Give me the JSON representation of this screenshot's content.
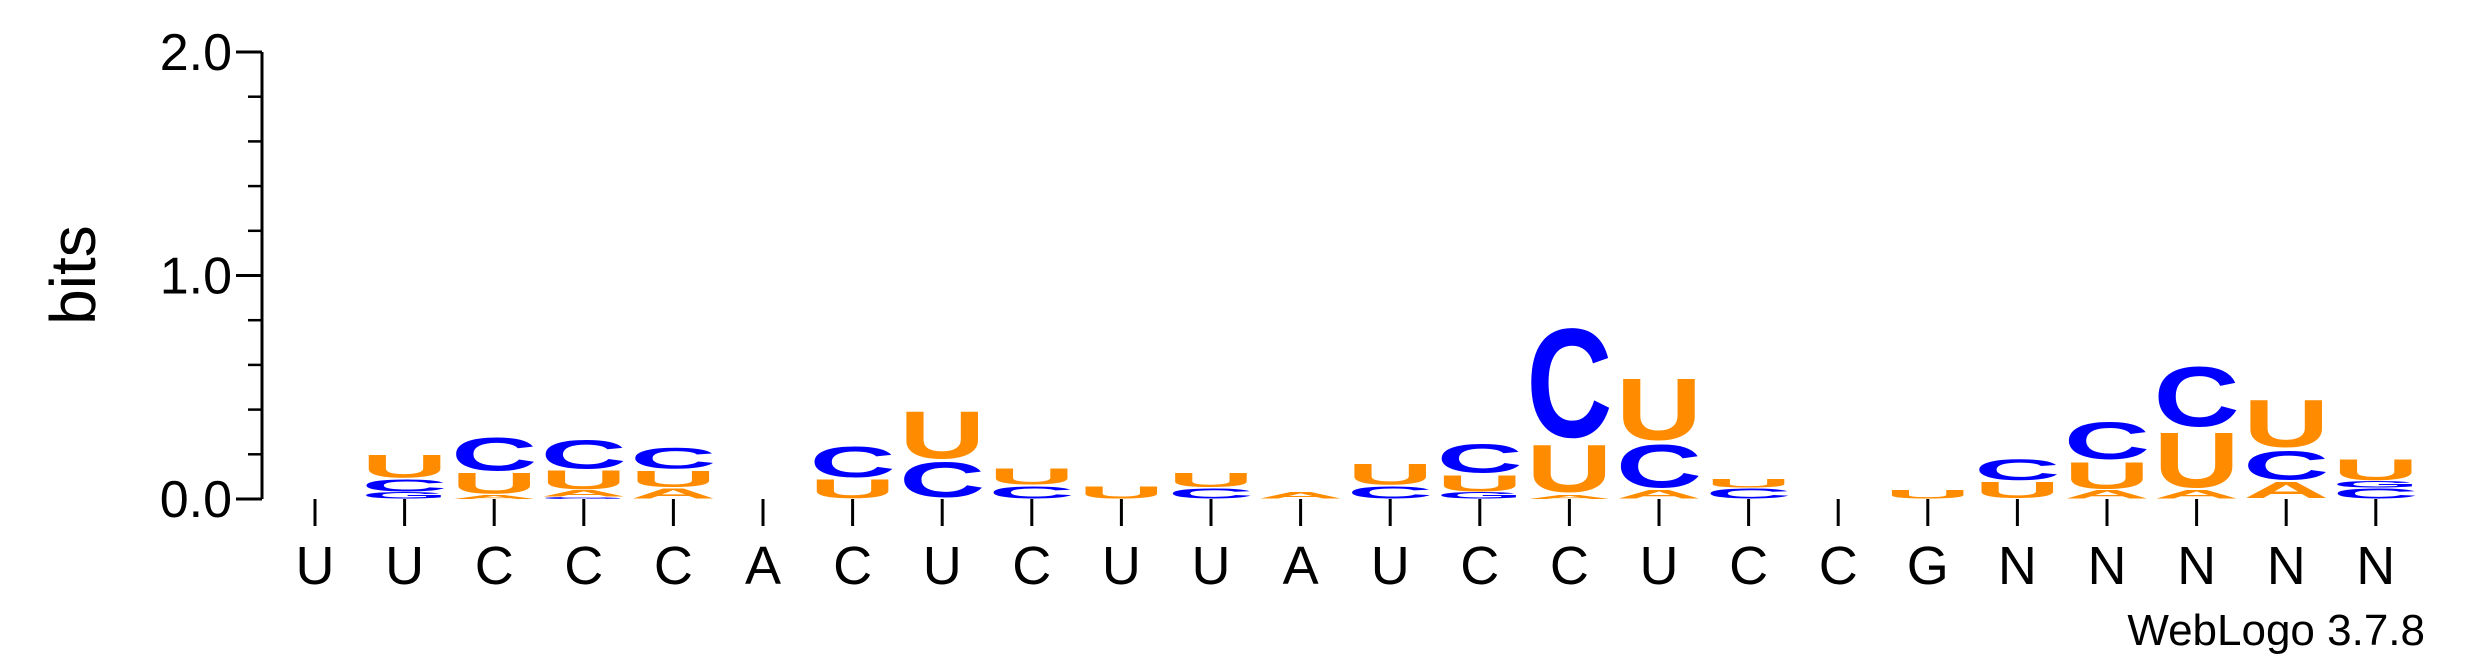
{
  "chart_data": {
    "type": "sequence-logo",
    "ylabel": "bits",
    "ylim": [
      0,
      2.0
    ],
    "yticks": [
      "0.0",
      "1.0",
      "2.0"
    ],
    "credit": "WebLogo 3.7.8",
    "colors": {
      "U": "#FF8C00",
      "C": "#0000FF",
      "A": "#FF8C00",
      "G": "#0000FF"
    },
    "positions": [
      {
        "label": "U",
        "stack": []
      },
      {
        "label": "U",
        "stack": [
          [
            "G",
            0.03
          ],
          [
            "C",
            0.06
          ],
          [
            "U",
            0.11
          ]
        ]
      },
      {
        "label": "C",
        "stack": [
          [
            "A",
            0.02
          ],
          [
            "U",
            0.1
          ],
          [
            "C",
            0.16
          ]
        ]
      },
      {
        "label": "C",
        "stack": [
          [
            "G",
            0.01
          ],
          [
            "A",
            0.03
          ],
          [
            "U",
            0.09
          ],
          [
            "C",
            0.14
          ]
        ]
      },
      {
        "label": "C",
        "stack": [
          [
            "A",
            0.05
          ],
          [
            "U",
            0.08
          ],
          [
            "C",
            0.1
          ]
        ]
      },
      {
        "label": "A",
        "stack": []
      },
      {
        "label": "C",
        "stack": [
          [
            "U",
            0.09
          ],
          [
            "C",
            0.15
          ]
        ]
      },
      {
        "label": "U",
        "stack": [
          [
            "C",
            0.17
          ],
          [
            "U",
            0.23
          ]
        ]
      },
      {
        "label": "C",
        "stack": [
          [
            "C",
            0.06
          ],
          [
            "U",
            0.08
          ]
        ]
      },
      {
        "label": "U",
        "stack": [
          [
            "U",
            0.06
          ]
        ]
      },
      {
        "label": "U",
        "stack": [
          [
            "C",
            0.05
          ],
          [
            "U",
            0.07
          ]
        ]
      },
      {
        "label": "A",
        "stack": [
          [
            "A",
            0.03
          ]
        ]
      },
      {
        "label": "U",
        "stack": [
          [
            "C",
            0.06
          ],
          [
            "U",
            0.1
          ]
        ]
      },
      {
        "label": "C",
        "stack": [
          [
            "G",
            0.03
          ],
          [
            "U",
            0.08
          ],
          [
            "C",
            0.14
          ]
        ]
      },
      {
        "label": "C",
        "stack": [
          [
            "A",
            0.02
          ],
          [
            "U",
            0.23
          ],
          [
            "C",
            0.53
          ]
        ]
      },
      {
        "label": "U",
        "stack": [
          [
            "A",
            0.04
          ],
          [
            "C",
            0.21
          ],
          [
            "U",
            0.3
          ]
        ]
      },
      {
        "label": "C",
        "stack": [
          [
            "C",
            0.05
          ],
          [
            "U",
            0.04
          ]
        ]
      },
      {
        "label": "C",
        "stack": []
      },
      {
        "label": "G",
        "stack": [
          [
            "U",
            0.04
          ]
        ]
      },
      {
        "label": "N",
        "stack": [
          [
            "U",
            0.08
          ],
          [
            "C",
            0.1
          ]
        ]
      },
      {
        "label": "N",
        "stack": [
          [
            "A",
            0.04
          ],
          [
            "U",
            0.13
          ],
          [
            "C",
            0.18
          ]
        ]
      },
      {
        "label": "N",
        "stack": [
          [
            "A",
            0.04
          ],
          [
            "U",
            0.27
          ],
          [
            "C",
            0.29
          ]
        ]
      },
      {
        "label": "N",
        "stack": [
          [
            "A",
            0.08
          ],
          [
            "C",
            0.14
          ],
          [
            "U",
            0.23
          ]
        ]
      },
      {
        "label": "N",
        "stack": [
          [
            "C",
            0.05
          ],
          [
            "G",
            0.03
          ],
          [
            "U",
            0.1
          ]
        ]
      }
    ]
  }
}
